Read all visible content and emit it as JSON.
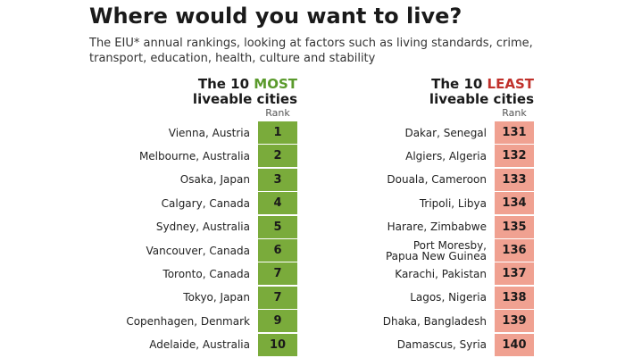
{
  "title": "Where would you want to live?",
  "subtitle": "The EIU* annual rankings, looking at factors such as living standards, crime, transport, education, health, culture and stability",
  "colors": {
    "most": "#7aab3b",
    "most_text": "#5a9a2c",
    "least": "#f0a191",
    "least_text": "#c0312b"
  },
  "chart_data": {
    "type": "table",
    "column_header": "Rank",
    "panels": [
      {
        "title_prefix": "The 10 ",
        "title_highlight": "MOST",
        "title_suffix": "liveable cities",
        "rows": [
          {
            "city": "Vienna, Austria",
            "rank": 1
          },
          {
            "city": "Melbourne, Australia",
            "rank": 2
          },
          {
            "city": "Osaka, Japan",
            "rank": 3
          },
          {
            "city": "Calgary, Canada",
            "rank": 4
          },
          {
            "city": "Sydney, Australia",
            "rank": 5
          },
          {
            "city": "Vancouver, Canada",
            "rank": 6
          },
          {
            "city": "Toronto, Canada",
            "rank": 7
          },
          {
            "city": "Tokyo, Japan",
            "rank": 7
          },
          {
            "city": "Copenhagen, Denmark",
            "rank": 9
          },
          {
            "city": "Adelaide, Australia",
            "rank": 10
          }
        ]
      },
      {
        "title_prefix": "The 10 ",
        "title_highlight": "LEAST",
        "title_suffix": "liveable cities",
        "rows": [
          {
            "city": "Dakar, Senegal",
            "rank": 131
          },
          {
            "city": "Algiers, Algeria",
            "rank": 132
          },
          {
            "city": "Douala, Cameroon",
            "rank": 133
          },
          {
            "city": "Tripoli, Libya",
            "rank": 134
          },
          {
            "city": "Harare, Zimbabwe",
            "rank": 135
          },
          {
            "city": "Port Moresby, Papua New Guinea",
            "city_lines": [
              "Port Moresby,",
              "Papua New Guinea"
            ],
            "rank": 136
          },
          {
            "city": "Karachi, Pakistan",
            "rank": 137
          },
          {
            "city": "Lagos, Nigeria",
            "rank": 138
          },
          {
            "city": "Dhaka, Bangladesh",
            "rank": 139
          },
          {
            "city": "Damascus, Syria",
            "rank": 140
          }
        ]
      }
    ]
  }
}
